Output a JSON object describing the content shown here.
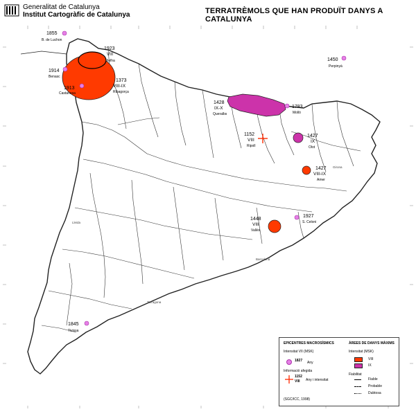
{
  "header": {
    "org_line1": "Generalitat de Catalunya",
    "org_line2": "Institut Cartogràfic de Catalunya",
    "title": "TERRATRÈMOLS QUE HAN PRODUÏT DANYS A CATALUNYA"
  },
  "colors": {
    "intensity_viii": "#ff3a00",
    "intensity_ix": "#cc33aa",
    "epicentre": "#dd66dd",
    "boundary": "#222222"
  },
  "earthquakes": [
    {
      "year": "1855",
      "intensity": "",
      "place": "B. de Luchon",
      "kind": "epicentre"
    },
    {
      "year": "1923",
      "intensity": "VIII",
      "place": "Vielha",
      "kind": "area"
    },
    {
      "year": "1914",
      "intensity": "",
      "place": "Benasc",
      "kind": "epicentre"
    },
    {
      "year": "1373",
      "intensity": "VIII-IX",
      "place": "Ribagorça",
      "kind": "area"
    },
    {
      "year": "1913",
      "intensity": "",
      "place": "Castanesa",
      "kind": "epicentre"
    },
    {
      "year": "1450",
      "intensity": "",
      "place": "Perpinyà",
      "kind": "epicentre"
    },
    {
      "year": "1428",
      "intensity": "IX-X",
      "place": "Queralbs",
      "kind": "area"
    },
    {
      "year": "1783",
      "intensity": "",
      "place": "Molló",
      "kind": "epicentre"
    },
    {
      "year": "1152",
      "intensity": "VIII",
      "place": "Ripoll",
      "kind": "cross"
    },
    {
      "year": "1427",
      "intensity": "IX",
      "place": "Olot",
      "kind": "area"
    },
    {
      "year": "1427",
      "intensity": "VIII-IX",
      "place": "Amer",
      "kind": "area"
    },
    {
      "year": "1448",
      "intensity": "VIII",
      "place": "Vallès",
      "kind": "area"
    },
    {
      "year": "1927",
      "intensity": "",
      "place": "S. Celoni",
      "kind": "epicentre"
    },
    {
      "year": "1845",
      "intensity": "",
      "place": "Tivissa",
      "kind": "epicentre"
    }
  ],
  "towns": {
    "lleida": "Lleida",
    "barcelona": "Barcelona",
    "tarragona": "Tarragona",
    "girona": "Girona"
  },
  "legend": {
    "epicentres_title": "EPICENTRES MACROSÍSMICS",
    "intensity_vii": "Intensitat VII (MSK)",
    "epicentre_year": "1827",
    "epicentre_caption": "Any",
    "info_title": "Informació afegida",
    "cross_year": "1152",
    "cross_int": "VIII",
    "cross_caption": "Any i intensitat",
    "source": "(SGC/ICC, 1998)",
    "areas_title": "ÀREES DE DANYS MÀXIMS",
    "areas_intensity": "Intensitat (MSK)",
    "area_vii": "VIII",
    "area_ix": "IX",
    "reliability_title": "Fiabilitat",
    "reliable": "Fiable",
    "probable": "Probable",
    "dubious": "Dubtosa"
  }
}
